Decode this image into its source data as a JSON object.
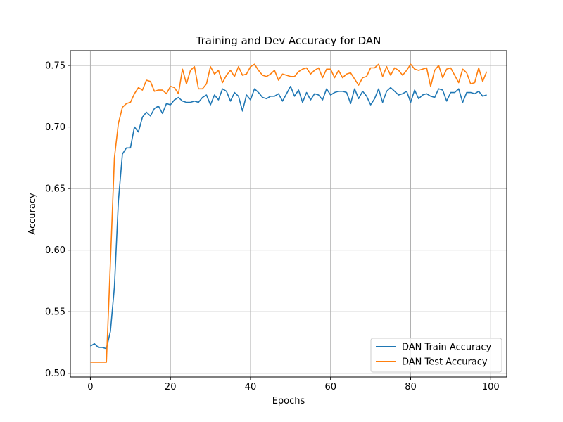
{
  "chart_data": {
    "type": "line",
    "title": "Training and Dev Accuracy for DAN",
    "xlabel": "Epochs",
    "ylabel": "Accuracy",
    "xlim": [
      -5,
      104
    ],
    "ylim": [
      0.497,
      0.762
    ],
    "xticks": [
      0,
      20,
      40,
      60,
      80,
      100
    ],
    "yticks": [
      0.5,
      0.55,
      0.6,
      0.65,
      0.7,
      0.75
    ],
    "ytick_labels": [
      "0.50",
      "0.55",
      "0.60",
      "0.65",
      "0.70",
      "0.75"
    ],
    "grid": true,
    "legend_position": "lower-right",
    "x": [
      0,
      1,
      2,
      3,
      4,
      5,
      6,
      7,
      8,
      9,
      10,
      11,
      12,
      13,
      14,
      15,
      16,
      17,
      18,
      19,
      20,
      21,
      22,
      23,
      24,
      25,
      26,
      27,
      28,
      29,
      30,
      31,
      32,
      33,
      34,
      35,
      36,
      37,
      38,
      39,
      40,
      41,
      42,
      43,
      44,
      45,
      46,
      47,
      48,
      49,
      50,
      51,
      52,
      53,
      54,
      55,
      56,
      57,
      58,
      59,
      60,
      61,
      62,
      63,
      64,
      65,
      66,
      67,
      68,
      69,
      70,
      71,
      72,
      73,
      74,
      75,
      76,
      77,
      78,
      79,
      80,
      81,
      82,
      83,
      84,
      85,
      86,
      87,
      88,
      89,
      90,
      91,
      92,
      93,
      94,
      95,
      96,
      97,
      98,
      99
    ],
    "series": [
      {
        "name": "DAN Train Accuracy",
        "color": "#1f77b4",
        "values": [
          0.522,
          0.524,
          0.521,
          0.521,
          0.52,
          0.534,
          0.57,
          0.64,
          0.678,
          0.683,
          0.683,
          0.7,
          0.696,
          0.708,
          0.712,
          0.709,
          0.715,
          0.717,
          0.711,
          0.719,
          0.718,
          0.722,
          0.724,
          0.721,
          0.72,
          0.72,
          0.721,
          0.72,
          0.724,
          0.726,
          0.718,
          0.726,
          0.722,
          0.731,
          0.729,
          0.721,
          0.728,
          0.725,
          0.713,
          0.726,
          0.722,
          0.731,
          0.728,
          0.724,
          0.723,
          0.725,
          0.725,
          0.727,
          0.721,
          0.727,
          0.733,
          0.725,
          0.73,
          0.72,
          0.728,
          0.722,
          0.727,
          0.726,
          0.722,
          0.731,
          0.726,
          0.728,
          0.729,
          0.729,
          0.728,
          0.719,
          0.731,
          0.723,
          0.729,
          0.725,
          0.718,
          0.723,
          0.731,
          0.72,
          0.729,
          0.732,
          0.729,
          0.726,
          0.727,
          0.729,
          0.72,
          0.73,
          0.723,
          0.726,
          0.727,
          0.725,
          0.724,
          0.731,
          0.73,
          0.721,
          0.728,
          0.728,
          0.731,
          0.72,
          0.728,
          0.728,
          0.727,
          0.729,
          0.725,
          0.726
        ]
      },
      {
        "name": "DAN Test Accuracy",
        "color": "#ff7f0e",
        "values": [
          0.509,
          0.509,
          0.509,
          0.509,
          0.509,
          0.59,
          0.675,
          0.703,
          0.716,
          0.719,
          0.72,
          0.727,
          0.732,
          0.73,
          0.738,
          0.737,
          0.729,
          0.73,
          0.73,
          0.727,
          0.733,
          0.732,
          0.727,
          0.747,
          0.735,
          0.746,
          0.749,
          0.731,
          0.731,
          0.735,
          0.749,
          0.743,
          0.746,
          0.736,
          0.742,
          0.746,
          0.741,
          0.749,
          0.742,
          0.743,
          0.749,
          0.751,
          0.746,
          0.742,
          0.741,
          0.743,
          0.746,
          0.738,
          0.743,
          0.742,
          0.741,
          0.741,
          0.745,
          0.747,
          0.748,
          0.743,
          0.746,
          0.748,
          0.74,
          0.747,
          0.747,
          0.74,
          0.746,
          0.74,
          0.743,
          0.744,
          0.739,
          0.734,
          0.74,
          0.741,
          0.748,
          0.748,
          0.751,
          0.741,
          0.749,
          0.742,
          0.748,
          0.746,
          0.742,
          0.746,
          0.751,
          0.747,
          0.746,
          0.747,
          0.748,
          0.733,
          0.746,
          0.75,
          0.74,
          0.747,
          0.748,
          0.742,
          0.736,
          0.747,
          0.744,
          0.735,
          0.736,
          0.748,
          0.737,
          0.745
        ]
      }
    ]
  }
}
